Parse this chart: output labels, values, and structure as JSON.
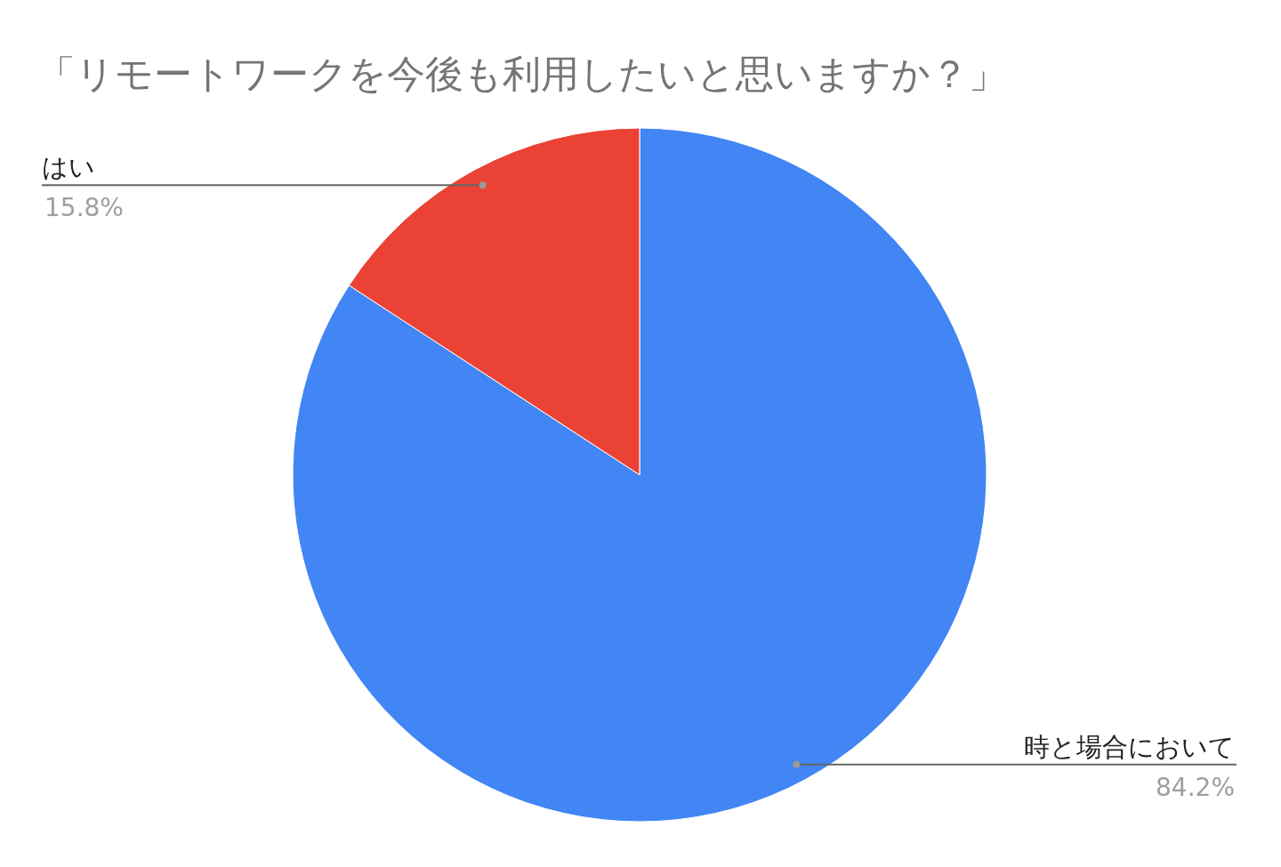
{
  "chart_data": {
    "type": "pie",
    "title": "「リモートワークを今後も利用したいと思いますか？」",
    "categories": [
      "時と場合において",
      "はい"
    ],
    "values": [
      84.2,
      15.8
    ],
    "colors": [
      "#4285f4",
      "#ea4335"
    ],
    "value_labels": [
      "84.2%",
      "15.8%"
    ]
  }
}
